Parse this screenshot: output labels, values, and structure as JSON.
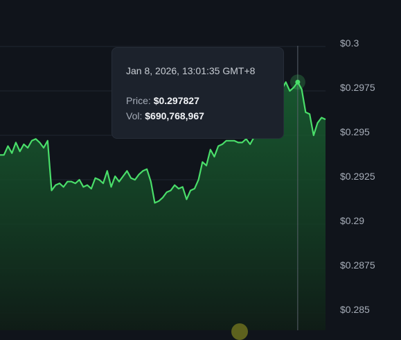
{
  "chart_data": {
    "type": "area",
    "yticks": [
      0.285,
      0.2875,
      0.29,
      0.2925,
      0.295,
      0.2975,
      0.3
    ],
    "ytick_labels": [
      "$0.285",
      "$0.2875",
      "$0.29",
      "$0.2925",
      "$0.295",
      "$0.2975",
      "$0.3"
    ],
    "ylim": [
      0.2845,
      0.301
    ],
    "grid": true,
    "series": [
      {
        "line_color": "#4ade6a",
        "values": [
          0.2937,
          0.2937,
          0.2942,
          0.2938,
          0.2944,
          0.2939,
          0.2943,
          0.2941,
          0.2945,
          0.2946,
          0.2944,
          0.2941,
          0.2945,
          0.2917,
          0.292,
          0.2921,
          0.2919,
          0.2922,
          0.2922,
          0.2921,
          0.2923,
          0.2919,
          0.292,
          0.2918,
          0.2924,
          0.2923,
          0.2921,
          0.2928,
          0.2919,
          0.2925,
          0.2922,
          0.2925,
          0.2928,
          0.2924,
          0.2923,
          0.2926,
          0.2928,
          0.2929,
          0.2922,
          0.291,
          0.2911,
          0.2913,
          0.2916,
          0.2917,
          0.292,
          0.2918,
          0.2919,
          0.2912,
          0.2917,
          0.2918,
          0.2923,
          0.2933,
          0.2931,
          0.294,
          0.2936,
          0.2942,
          0.2943,
          0.2945,
          0.2945,
          0.2945,
          0.2944,
          0.2944,
          0.2946,
          0.2943,
          0.2947,
          0.2953,
          0.296,
          0.2968,
          0.2972,
          0.2975,
          0.2977,
          0.2974,
          0.2978,
          0.2973,
          0.2975,
          0.2978,
          0.2974,
          0.2961,
          0.296,
          0.2948,
          0.2955,
          0.2958,
          0.2957
        ]
      }
    ],
    "hover_index": 75
  },
  "tooltip": {
    "timestamp": "Jan 8, 2026, 13:01:35 GMT+8",
    "price_label": "Price:",
    "price_value": "$0.297827",
    "vol_label": "Vol:",
    "vol_value": "$690,768,967"
  },
  "colors": {
    "background": "#10141b",
    "grid": "#1f2630",
    "line": "#4ade6a",
    "crosshair": "#5a616c"
  }
}
